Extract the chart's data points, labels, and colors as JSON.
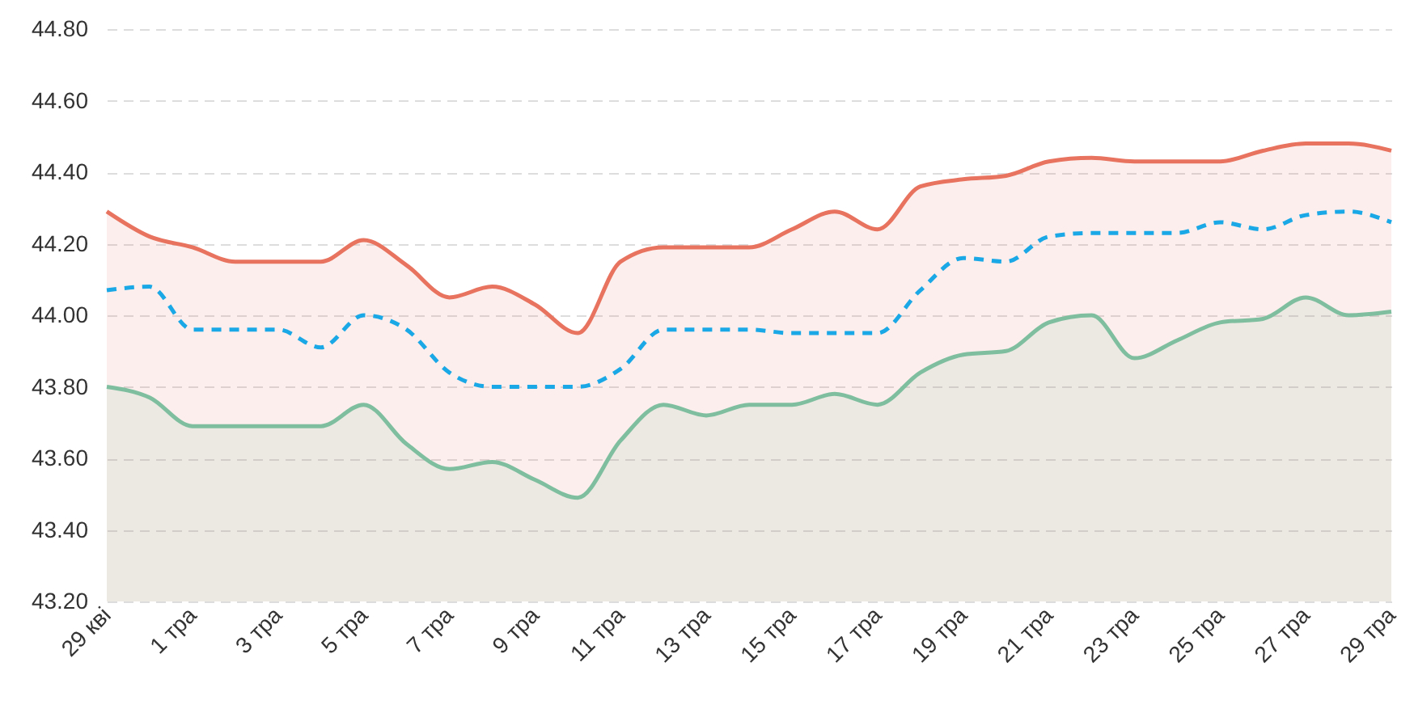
{
  "chart_data": {
    "type": "line",
    "categories": [
      "29 кві",
      null,
      "1 тра",
      null,
      "3 тра",
      null,
      "5 тра",
      null,
      "7 тра",
      null,
      "9 тра",
      null,
      "11 тра",
      null,
      "13 тра",
      null,
      "15 тра",
      null,
      "17 тра",
      null,
      "19 тра",
      null,
      "21 тра",
      null,
      "23 тра",
      null,
      "25 тра",
      null,
      "27 тра",
      null,
      "29 тра"
    ],
    "series": [
      {
        "type": "area",
        "color": "#e8735f",
        "line_style": "solid",
        "values": [
          44.29,
          44.22,
          44.19,
          44.15,
          44.15,
          44.15,
          44.21,
          44.14,
          44.05,
          44.08,
          44.03,
          43.95,
          44.15,
          44.19,
          44.19,
          44.19,
          44.24,
          44.29,
          44.24,
          44.36,
          44.38,
          44.39,
          44.43,
          44.44,
          44.43,
          44.43,
          44.43,
          44.46,
          44.48,
          44.48,
          44.46
        ]
      },
      {
        "color": "#1ba8e6",
        "line_style": "dashed",
        "values": [
          44.07,
          44.08,
          43.96,
          43.96,
          43.96,
          43.91,
          44.0,
          43.96,
          43.84,
          43.8,
          43.8,
          43.8,
          43.85,
          43.96,
          43.96,
          43.96,
          43.95,
          43.95,
          43.95,
          44.07,
          44.16,
          44.15,
          44.22,
          44.23,
          44.23,
          44.23,
          44.26,
          44.24,
          44.28,
          44.29,
          44.26
        ]
      },
      {
        "type": "area",
        "color": "#7fbf9f",
        "line_style": "solid",
        "values": [
          43.8,
          43.77,
          43.69,
          43.69,
          43.69,
          43.69,
          43.75,
          43.64,
          43.57,
          43.59,
          43.54,
          43.49,
          43.65,
          43.75,
          43.72,
          43.75,
          43.75,
          43.78,
          43.75,
          43.84,
          43.89,
          43.9,
          43.98,
          44.0,
          43.88,
          43.93,
          43.98,
          43.99,
          44.05,
          44.0,
          44.01
        ]
      }
    ],
    "ylim": [
      43.2,
      44.8
    ],
    "yticks": [
      {
        "value": 43.2,
        "label": "43.20"
      },
      {
        "value": 43.4,
        "label": "43.40"
      },
      {
        "value": 43.6,
        "label": "43.60"
      },
      {
        "value": 43.8,
        "label": "43.80"
      },
      {
        "value": 44.0,
        "label": "44.00"
      },
      {
        "value": 44.2,
        "label": "44.20"
      },
      {
        "value": 44.4,
        "label": "44.40"
      },
      {
        "value": 44.6,
        "label": "44.60"
      },
      {
        "value": 44.8,
        "label": "44.80"
      }
    ],
    "grid": "y"
  }
}
